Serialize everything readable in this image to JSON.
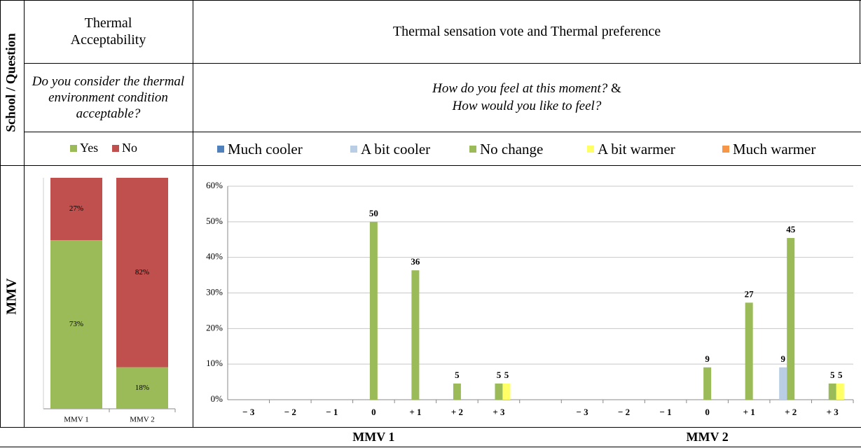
{
  "table": {
    "corner": "School / Question",
    "columns": [
      "Thermal Acceptability",
      "Thermal sensation vote and Thermal preference"
    ],
    "question_left": "Do you consider the thermal environment condition acceptable?",
    "question_right": [
      "How do you feel at this moment?",
      "&",
      "How would you like to feel?"
    ],
    "row_label": "MMV"
  },
  "chart_data": [
    {
      "type": "stacked_bar",
      "categories": [
        "MMV 1",
        "MMV 2"
      ],
      "ylim": [
        0,
        100
      ],
      "series": [
        {
          "name": "Yes",
          "color": "#9bbb59",
          "values": [
            73,
            18
          ],
          "value_labels": [
            "73%",
            "18%"
          ]
        },
        {
          "name": "No",
          "color": "#c0504d",
          "values": [
            27,
            82
          ],
          "value_labels": [
            "27%",
            "82%"
          ]
        }
      ]
    },
    {
      "type": "bar",
      "categories": [
        "− 3",
        "− 2",
        "− 1",
        "0",
        "+ 1",
        "+ 2",
        "+ 3",
        null,
        "− 3",
        "− 2",
        "− 1",
        "0",
        "+ 1",
        "+ 2",
        "+ 3"
      ],
      "groups": [
        "MMV 1",
        "MMV 2"
      ],
      "ylim": [
        0,
        60
      ],
      "yticks": [
        {
          "value": 0,
          "label": "0%"
        },
        {
          "value": 10,
          "label": "10%"
        },
        {
          "value": 20,
          "label": "20%"
        },
        {
          "value": 30,
          "label": "30%"
        },
        {
          "value": 40,
          "label": "40%"
        },
        {
          "value": 50,
          "label": "50%"
        },
        {
          "value": 60,
          "label": "60%"
        }
      ],
      "grid": true,
      "series": [
        {
          "name": "Much cooler",
          "color": "#4f81bd",
          "values": [
            null,
            null,
            null,
            null,
            null,
            null,
            null,
            null,
            null,
            null,
            null,
            null,
            null,
            null,
            null
          ]
        },
        {
          "name": "A bit cooler",
          "color": "#b9cde5",
          "values": [
            null,
            null,
            null,
            null,
            null,
            null,
            null,
            null,
            null,
            null,
            null,
            null,
            null,
            9.09,
            null
          ],
          "value_labels": [
            null,
            null,
            null,
            null,
            null,
            null,
            null,
            null,
            null,
            null,
            null,
            null,
            null,
            "9",
            null
          ]
        },
        {
          "name": "No change",
          "color": "#9bbb59",
          "values": [
            null,
            null,
            null,
            50,
            36.36,
            4.55,
            4.55,
            null,
            null,
            null,
            null,
            9.09,
            27.27,
            45.45,
            4.55
          ],
          "value_labels": [
            null,
            null,
            null,
            "50",
            "36",
            "5",
            "5",
            null,
            null,
            null,
            null,
            "9",
            "27",
            "45",
            "5"
          ]
        },
        {
          "name": "A bit warmer",
          "color": "#ffff66",
          "values": [
            null,
            null,
            null,
            null,
            null,
            null,
            4.55,
            null,
            null,
            null,
            null,
            null,
            null,
            null,
            4.55
          ],
          "value_labels": [
            null,
            null,
            null,
            null,
            null,
            null,
            "5",
            null,
            null,
            null,
            null,
            null,
            null,
            null,
            "5"
          ]
        },
        {
          "name": "Much warmer",
          "color": "#f79646",
          "values": [
            null,
            null,
            null,
            null,
            null,
            null,
            null,
            null,
            null,
            null,
            null,
            null,
            null,
            null,
            null
          ]
        }
      ]
    }
  ]
}
